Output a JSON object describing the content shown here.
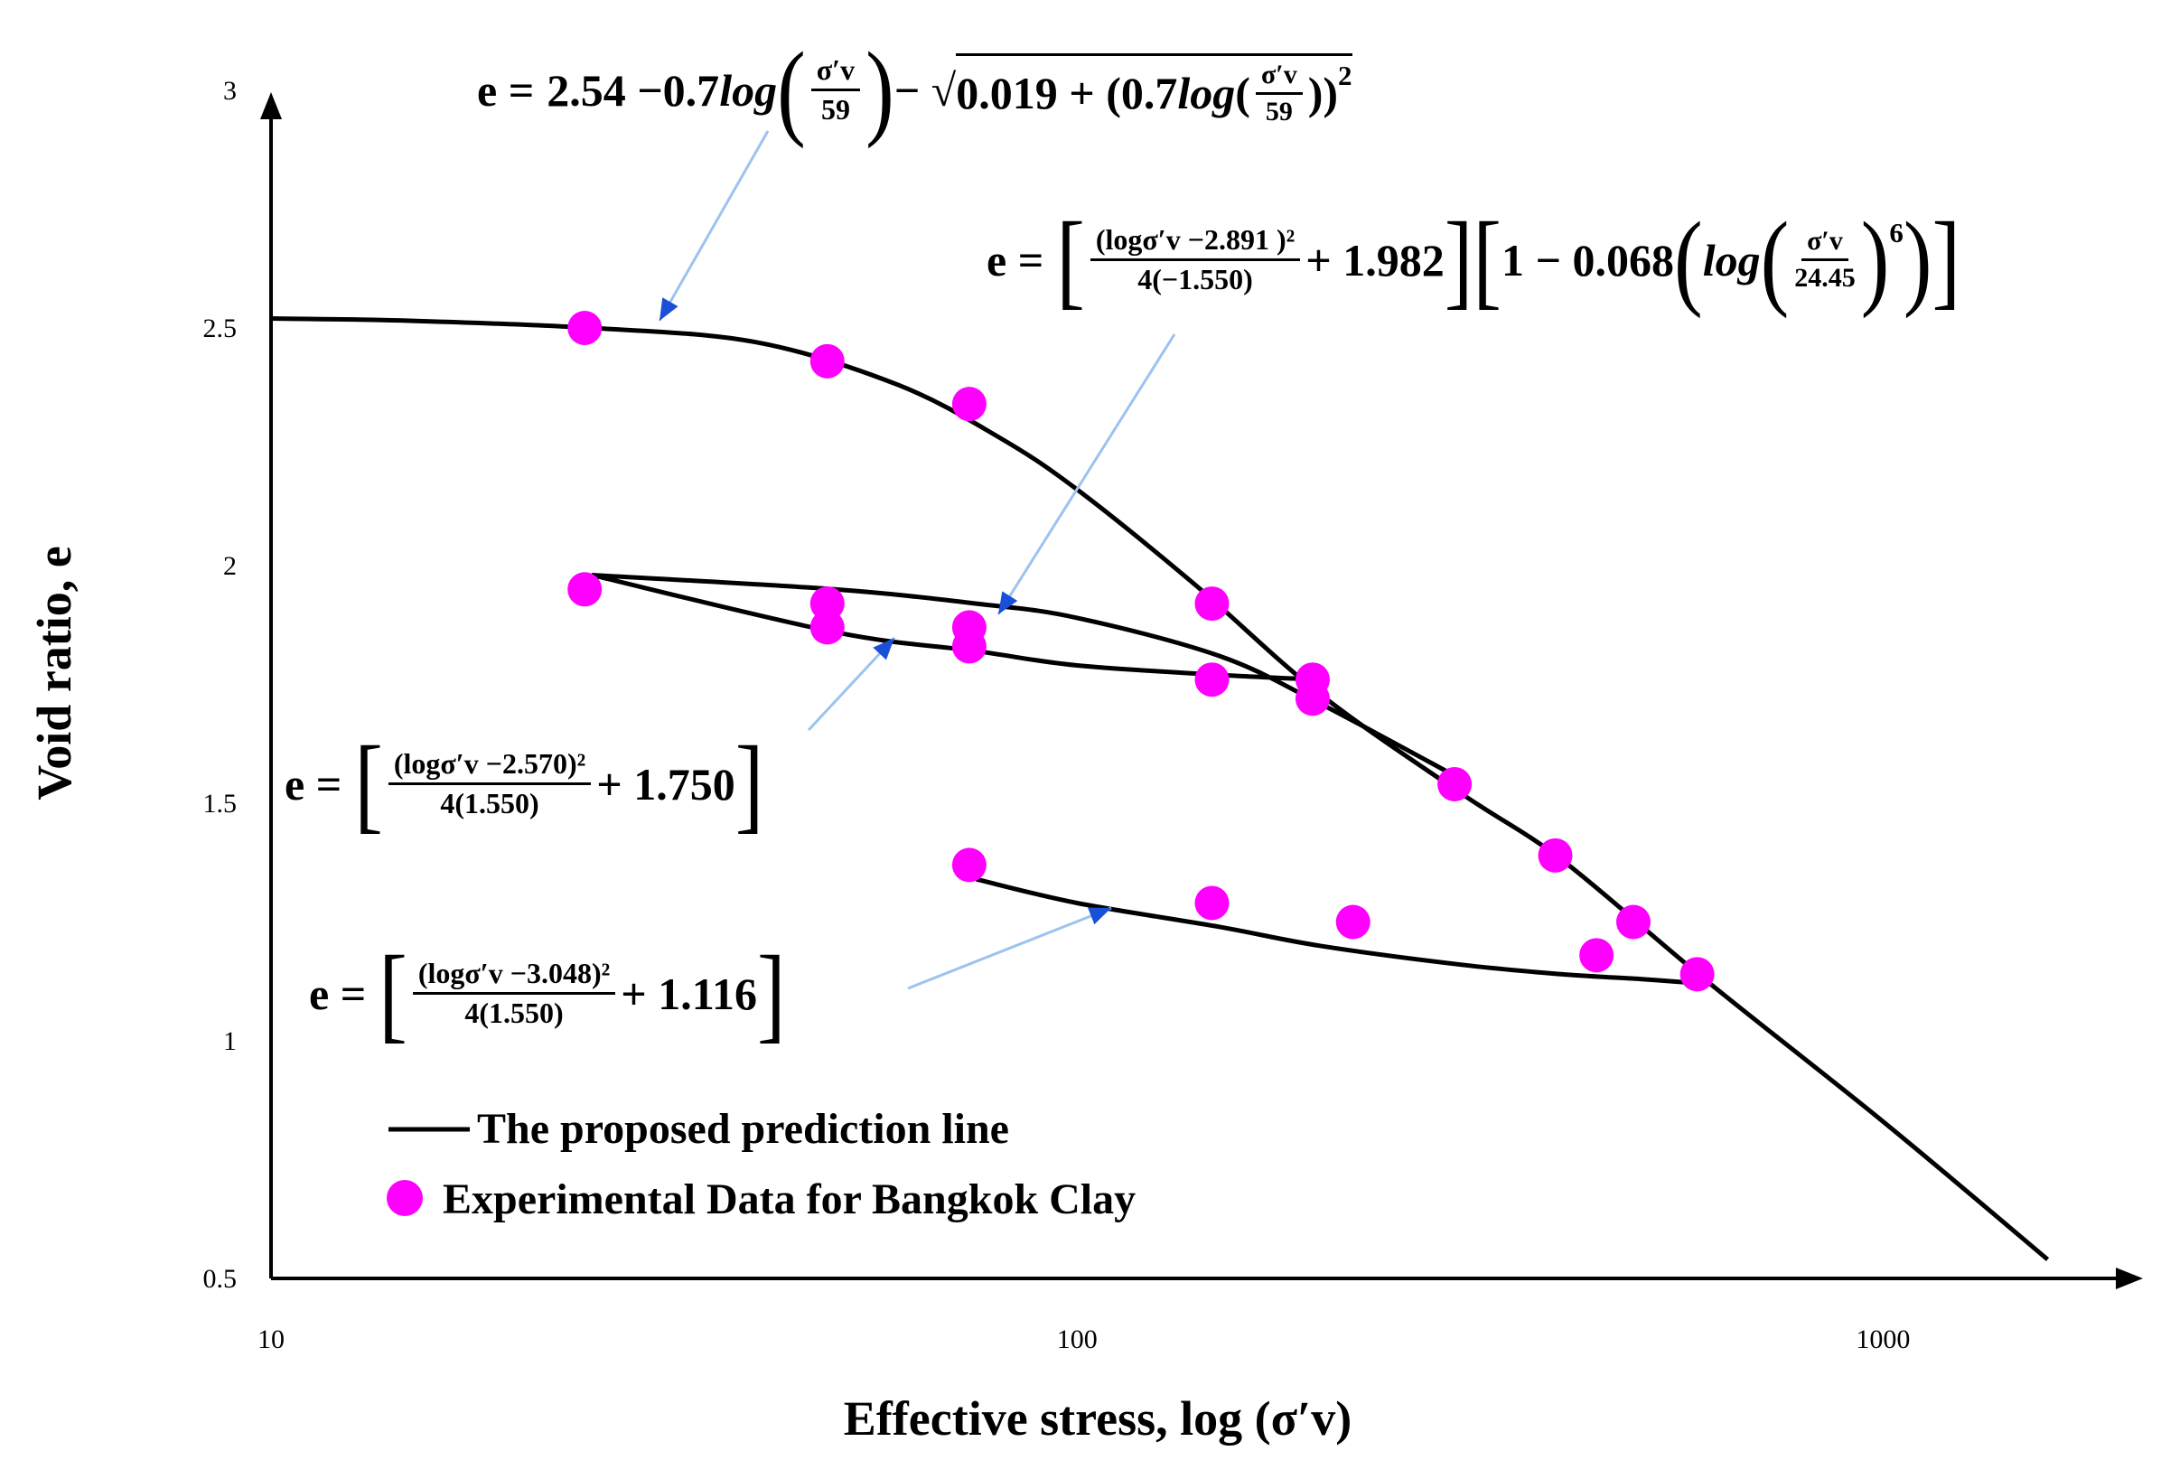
{
  "chart_data": {
    "type": "scatter",
    "xlabel": "Effective stress, log (σ′v)",
    "ylabel": "Void ratio, e",
    "xscale": "log",
    "xlim": [
      10,
      1700
    ],
    "ylim": [
      0.5,
      3.0
    ],
    "x_ticks": [
      "10",
      "100",
      "1000"
    ],
    "y_ticks": [
      "0.5",
      "1",
      "1.5",
      "2",
      "2.5",
      "3"
    ],
    "grid": false,
    "legend_position": "bottom-left",
    "series": [
      {
        "name": "The proposed prediction line",
        "kind": "line",
        "color": "#000000",
        "segments": [
          {
            "x": [
              10,
              15,
              25,
              40,
              60,
              80,
              100,
              140,
              200,
              300,
              400,
              600,
              1000,
              1600
            ],
            "y": [
              2.52,
              2.515,
              2.5,
              2.47,
              2.38,
              2.27,
              2.16,
              1.96,
              1.73,
              1.52,
              1.38,
              1.13,
              0.83,
              0.54
            ]
          },
          {
            "x": [
              25,
              50,
              75,
              100,
              150,
              200,
              300
            ],
            "y": [
              1.98,
              1.95,
              1.92,
              1.89,
              1.81,
              1.71,
              1.55
            ]
          },
          {
            "x": [
              25,
              50,
              75,
              100,
              150,
              200
            ],
            "y": [
              1.98,
              1.86,
              1.82,
              1.79,
              1.77,
              1.76
            ]
          },
          {
            "x": [
              75,
              100,
              150,
              200,
              300,
              400,
              500,
              600
            ],
            "y": [
              1.34,
              1.29,
              1.24,
              1.2,
              1.16,
              1.14,
              1.13,
              1.12
            ]
          }
        ]
      },
      {
        "name": "Experimental Data for Bangkok Clay",
        "kind": "scatter",
        "color": "#ff00ff",
        "x": [
          24.5,
          49,
          73.5,
          24.5,
          49,
          49,
          73.5,
          73.5,
          147,
          147,
          196,
          196,
          294,
          392,
          490,
          588,
          73.5,
          147,
          220,
          441
        ],
        "y": [
          2.5,
          2.43,
          2.34,
          1.95,
          1.92,
          1.87,
          1.87,
          1.83,
          1.92,
          1.76,
          1.76,
          1.72,
          1.54,
          1.39,
          1.25,
          1.14,
          1.37,
          1.29,
          1.25,
          1.18
        ]
      }
    ],
    "annotations": [
      {
        "label": "e = 2.54 − 0.7 log(σ′v/59) − √(0.019 + (0.7log(σ′v/59))²)"
      },
      {
        "label": "e = [(logσ′v −2.891)²/4(−1.550) + 1.982][1 − 0.068(log(σ′v/24.45)⁶)]"
      },
      {
        "label": "e = [(logσ′v −2.570)²/4(1.550) + 1.750]"
      },
      {
        "label": "e = [(logσ′v −3.048)²/4(1.550) + 1.116]"
      }
    ]
  },
  "equations": {
    "eq1": {
      "lhs": "e  =",
      "part1": "2.54 −0.7 ",
      "log": "log",
      "num": "σ′v",
      "den": "59",
      "minus": " − √",
      "inside_a": "0.019 + (0.7",
      "inside_b": "))",
      "sup": "2"
    },
    "eq2": {
      "lhs": "e  =",
      "num": "(logσ′v −2.891 )²",
      "den": "4(−1.550)",
      "plus": "+ 1.982",
      "one": "1 − 0.068",
      "log": "log",
      "num2": "σ′v",
      "den2": "24.45",
      "sup": "6"
    },
    "eq3": {
      "lhs": "e  =",
      "num": "(logσ′v −2.570)²",
      "den": "4(1.550)",
      "plus": "+ 1.750"
    },
    "eq4": {
      "lhs": "e  =",
      "num": "(logσ′v −3.048)²",
      "den": "4(1.550)",
      "plus": "+ 1.116"
    }
  }
}
